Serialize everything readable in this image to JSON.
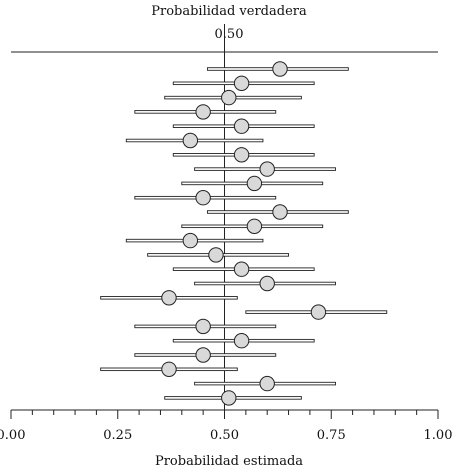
{
  "chart_data": {
    "type": "scatter",
    "title": "",
    "top_label": "Probabilidad verdadera",
    "reference_label": "0.50",
    "reference_value": 0.5,
    "xlabel": "Probabilidad estimada",
    "xlim": [
      0,
      1
    ],
    "x_ticks": [
      "0.00",
      "0.25",
      "0.50",
      "0.75",
      "1.00"
    ],
    "x_tick_values": [
      0,
      0.25,
      0.5,
      0.75,
      1.0
    ],
    "minor_tick_step": 0.05,
    "grid": false,
    "rows": [
      {
        "estimate": 0.63,
        "lower": 0.46,
        "upper": 0.79
      },
      {
        "estimate": 0.54,
        "lower": 0.38,
        "upper": 0.71
      },
      {
        "estimate": 0.51,
        "lower": 0.36,
        "upper": 0.68
      },
      {
        "estimate": 0.45,
        "lower": 0.29,
        "upper": 0.62
      },
      {
        "estimate": 0.54,
        "lower": 0.38,
        "upper": 0.71
      },
      {
        "estimate": 0.42,
        "lower": 0.27,
        "upper": 0.59
      },
      {
        "estimate": 0.54,
        "lower": 0.38,
        "upper": 0.71
      },
      {
        "estimate": 0.6,
        "lower": 0.43,
        "upper": 0.76
      },
      {
        "estimate": 0.57,
        "lower": 0.4,
        "upper": 0.73
      },
      {
        "estimate": 0.45,
        "lower": 0.29,
        "upper": 0.62
      },
      {
        "estimate": 0.63,
        "lower": 0.46,
        "upper": 0.79
      },
      {
        "estimate": 0.57,
        "lower": 0.4,
        "upper": 0.73
      },
      {
        "estimate": 0.42,
        "lower": 0.27,
        "upper": 0.59
      },
      {
        "estimate": 0.48,
        "lower": 0.32,
        "upper": 0.65
      },
      {
        "estimate": 0.54,
        "lower": 0.38,
        "upper": 0.71
      },
      {
        "estimate": 0.6,
        "lower": 0.43,
        "upper": 0.76
      },
      {
        "estimate": 0.37,
        "lower": 0.21,
        "upper": 0.53
      },
      {
        "estimate": 0.72,
        "lower": 0.55,
        "upper": 0.88
      },
      {
        "estimate": 0.45,
        "lower": 0.29,
        "upper": 0.62
      },
      {
        "estimate": 0.54,
        "lower": 0.38,
        "upper": 0.71
      },
      {
        "estimate": 0.45,
        "lower": 0.29,
        "upper": 0.62
      },
      {
        "estimate": 0.37,
        "lower": 0.21,
        "upper": 0.53
      },
      {
        "estimate": 0.6,
        "lower": 0.43,
        "upper": 0.76
      },
      {
        "estimate": 0.51,
        "lower": 0.36,
        "upper": 0.68
      }
    ],
    "colors": {
      "marker_fill": "#d9d9d9",
      "stroke": "#222222",
      "background": "#ffffff"
    }
  }
}
